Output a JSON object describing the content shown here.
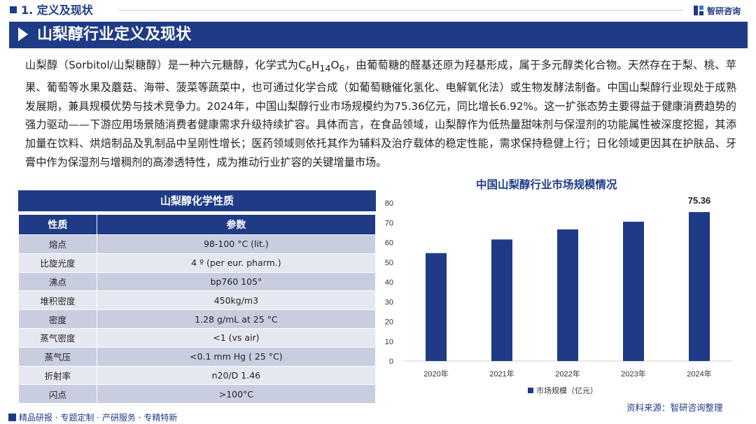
{
  "header": {
    "section_title": "1. 定义及现状",
    "logo_text": "智研咨询",
    "accent_color": "#1f3b86"
  },
  "banner": {
    "title": "山梨醇行业定义及现状"
  },
  "intro_html": "山梨醇（Sorbitol/山梨糖醇）是一种六元糖醇，化学式为C<sub>6</sub>H<sub>14</sub>O<sub>6</sub>，由葡萄糖的醛基还原为羟基形成，属于多元醇类化合物。天然存在于梨、桃、苹果、葡萄等水果及蘑菇、海带、菠菜等蔬菜中，也可通过化学合成（如葡萄糖催化氢化、电解氧化法）或生物发酵法制备。中国山梨醇行业现处于成熟发展期，兼具规模优势与技术竞争力。2024年，中国山梨醇行业市场规模约为75.36亿元，同比增长6.92%。这一扩张态势主要得益于健康消费趋势的强力驱动——下游应用场景随消费者健康需求升级持续扩容。具体而言，在食品领域，山梨醇作为低热量甜味剂与保湿剂的功能属性被深度挖掘，其添加量在饮料、烘焙制品及乳制品中呈刚性增长；医药领域则依托其作为辅料及治疗载体的稳定性能，需求保持稳健上行；日化领域更因其在护肤品、牙膏中作为保湿剂与增稠剂的高渗透特性，成为推动行业扩容的关键增量市场。",
  "table": {
    "title": "山梨醇化学性质",
    "headers": [
      "性质",
      "参数"
    ],
    "rows": [
      [
        "熔点",
        "98-100 °C (lit.)"
      ],
      [
        "比旋光度",
        "4 º (per eur. pharm.)"
      ],
      [
        "沸点",
        "bp760 105°"
      ],
      [
        "堆积密度",
        "450kg/m3"
      ],
      [
        "密度",
        "1.28 g/mL at 25 °C"
      ],
      [
        "蒸气密度",
        "<1 (vs air)"
      ],
      [
        "蒸气压",
        "<0.1 mm Hg ( 25 °C)"
      ],
      [
        "折射率",
        "n20/D 1.46"
      ],
      [
        "闪点",
        ">100°C"
      ]
    ]
  },
  "chart_data": {
    "type": "bar",
    "title": "中国山梨醇行业市场规模情况",
    "categories": [
      "2020年",
      "2021年",
      "2022年",
      "2023年",
      "2024年"
    ],
    "series": [
      {
        "name": "市场规模（亿元）",
        "values": [
          54.6,
          61.5,
          66.6,
          70.5,
          75.36
        ],
        "color": "#1f3b86"
      }
    ],
    "data_labels": {
      "2024年": "75.36"
    },
    "yticks": [
      0,
      10,
      20,
      30,
      40,
      50,
      60,
      70,
      80
    ],
    "ylim": [
      0,
      80
    ],
    "grid": false,
    "legend": "bottom"
  },
  "source": "资料来源：智研咨询整理",
  "footer": "精品研报 · 专题定制 · 产研服务 · 专精特新"
}
